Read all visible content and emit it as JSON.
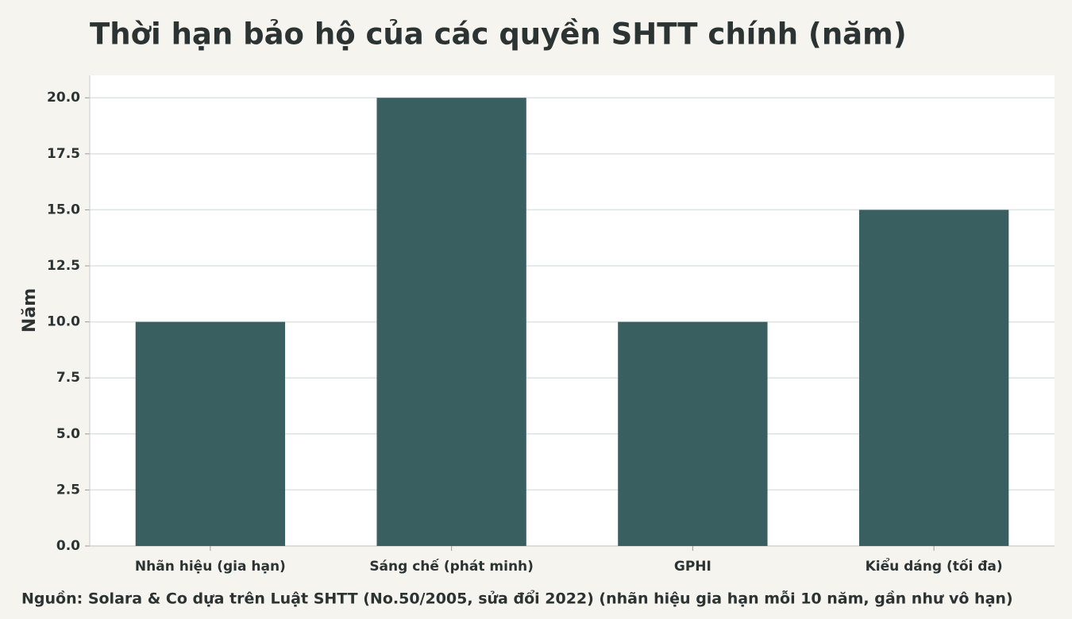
{
  "chart_data": {
    "type": "bar",
    "title": "Thời hạn bảo hộ của các quyền SHTT chính (năm)",
    "y_label": "Năm",
    "source": "Nguồn: Solara & Co dựa trên Luật SHTT (No.50/2005, sửa đổi 2022) (nhãn hiệu gia hạn mỗi 10 năm, gần như vô hạn)",
    "categories": [
      "Nhãn hiệu (gia hạn)",
      "Sáng chế (phát minh)",
      "GPHI",
      "Kiểu dáng (tối đa)"
    ],
    "values": [
      10,
      20,
      10,
      15
    ],
    "color": "#3a5f60",
    "ylim": [
      0,
      21
    ],
    "yticks": [
      {
        "value": 0,
        "label": "0.0"
      },
      2.5,
      {
        "value": 5,
        "label": "5.0"
      },
      7.5,
      {
        "value": 10,
        "label": "10.0"
      },
      12.5,
      {
        "value": 15,
        "label": "15.0"
      },
      17.5,
      {
        "value": 20,
        "label": "20.0"
      }
    ],
    "grid": true
  }
}
